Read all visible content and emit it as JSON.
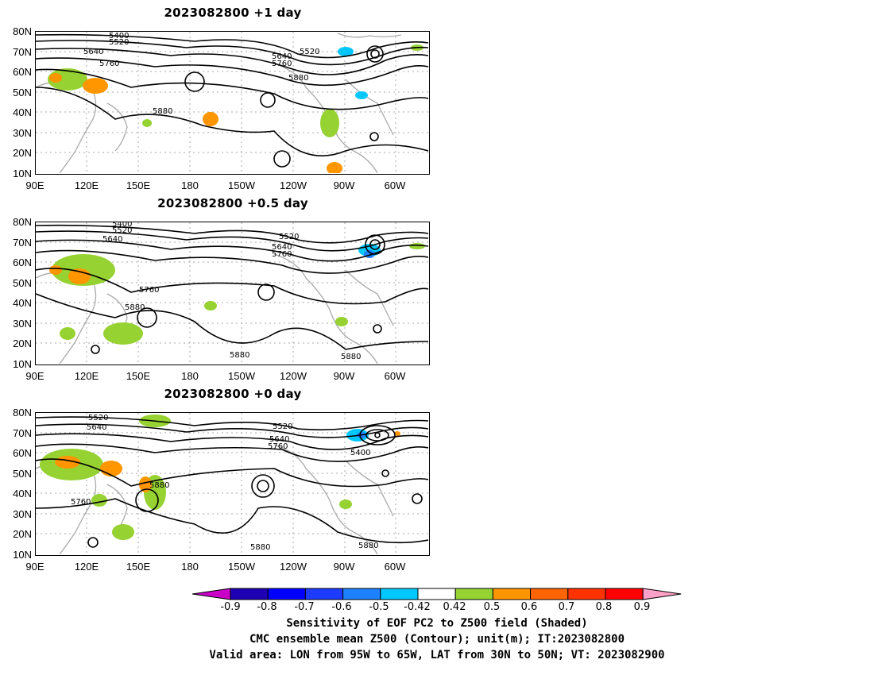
{
  "panels": [
    {
      "title": "2023082800  +1 day",
      "contour_labels": [
        "5400",
        "5520",
        "5640",
        "5760",
        "5880",
        "5520",
        "5640",
        "5760",
        "5880"
      ]
    },
    {
      "title": "2023082800  +0.5 day",
      "contour_labels": [
        "5400",
        "5520",
        "5640",
        "5760",
        "5880",
        "5520",
        "5640",
        "5760",
        "5880",
        "5880"
      ]
    },
    {
      "title": "2023082800  +0 day",
      "contour_labels": [
        "5520",
        "5640",
        "5760",
        "5880",
        "5520",
        "5640",
        "5760",
        "5400",
        "5880",
        "5880"
      ]
    }
  ],
  "lat_labels": [
    "80N",
    "70N",
    "60N",
    "50N",
    "40N",
    "30N",
    "20N",
    "10N"
  ],
  "lon_labels": [
    "90E",
    "120E",
    "150E",
    "180",
    "150W",
    "120W",
    "90W",
    "60W"
  ],
  "colorbar": {
    "ticks": [
      "-0.9",
      "-0.8",
      "-0.7",
      "-0.6",
      "-0.5",
      "-0.42",
      "0.42",
      "0.5",
      "0.6",
      "0.7",
      "0.8",
      "0.9"
    ],
    "colors": [
      "#c800c8",
      "#1e00b4",
      "#0000ff",
      "#1e3cff",
      "#1e82ff",
      "#00c8ff",
      "#ffffff",
      "#96d232",
      "#ff9600",
      "#ff6400",
      "#ff3200",
      "#ff0000",
      "#ffa0c8"
    ]
  },
  "caption": {
    "line1": "Sensitivity of EOF PC2 to Z500 field (Shaded)",
    "line2": "CMC ensemble mean Z500 (Contour); unit(m); IT:2023082800",
    "line3": "Valid area: LON from 95W to 65W, LAT from 30N to 50N; VT: 2023082900"
  }
}
